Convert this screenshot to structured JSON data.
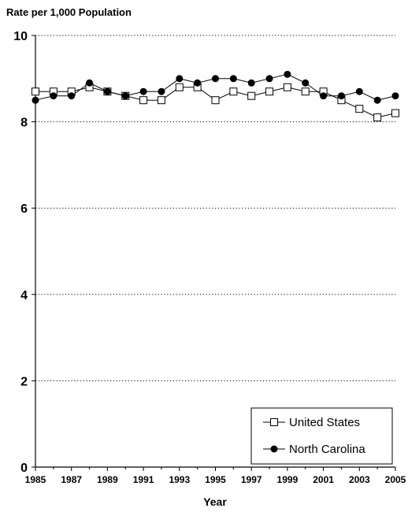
{
  "chart_data": {
    "type": "line",
    "title": "",
    "ylabel": "Rate per 1,000 Population",
    "xlabel": "Year",
    "x": [
      1985,
      1986,
      1987,
      1988,
      1989,
      1990,
      1991,
      1992,
      1993,
      1994,
      1995,
      1996,
      1997,
      1998,
      1999,
      2000,
      2001,
      2002,
      2003,
      2004,
      2005
    ],
    "xticks": [
      1985,
      1987,
      1989,
      1991,
      1993,
      1995,
      1997,
      1999,
      2001,
      2003,
      2005
    ],
    "yticks": [
      0,
      2,
      4,
      6,
      8,
      10
    ],
    "xlim": [
      1985,
      2005
    ],
    "ylim": [
      0,
      10
    ],
    "grid": "horizontal dotted",
    "legend_position": "bottom-right",
    "series": [
      {
        "name": "United States",
        "marker": "open-square",
        "color": "#000000",
        "values": [
          8.7,
          8.7,
          8.7,
          8.8,
          8.7,
          8.6,
          8.5,
          8.5,
          8.8,
          8.8,
          8.5,
          8.7,
          8.6,
          8.7,
          8.8,
          8.7,
          8.7,
          8.5,
          8.3,
          8.1,
          8.2
        ]
      },
      {
        "name": "North Carolina",
        "marker": "filled-circle",
        "color": "#000000",
        "values": [
          8.5,
          8.6,
          8.6,
          8.9,
          8.7,
          8.6,
          8.7,
          8.7,
          9.0,
          8.9,
          9.0,
          9.0,
          8.9,
          9.0,
          9.1,
          8.9,
          8.6,
          8.6,
          8.7,
          8.5,
          8.6
        ]
      }
    ]
  }
}
